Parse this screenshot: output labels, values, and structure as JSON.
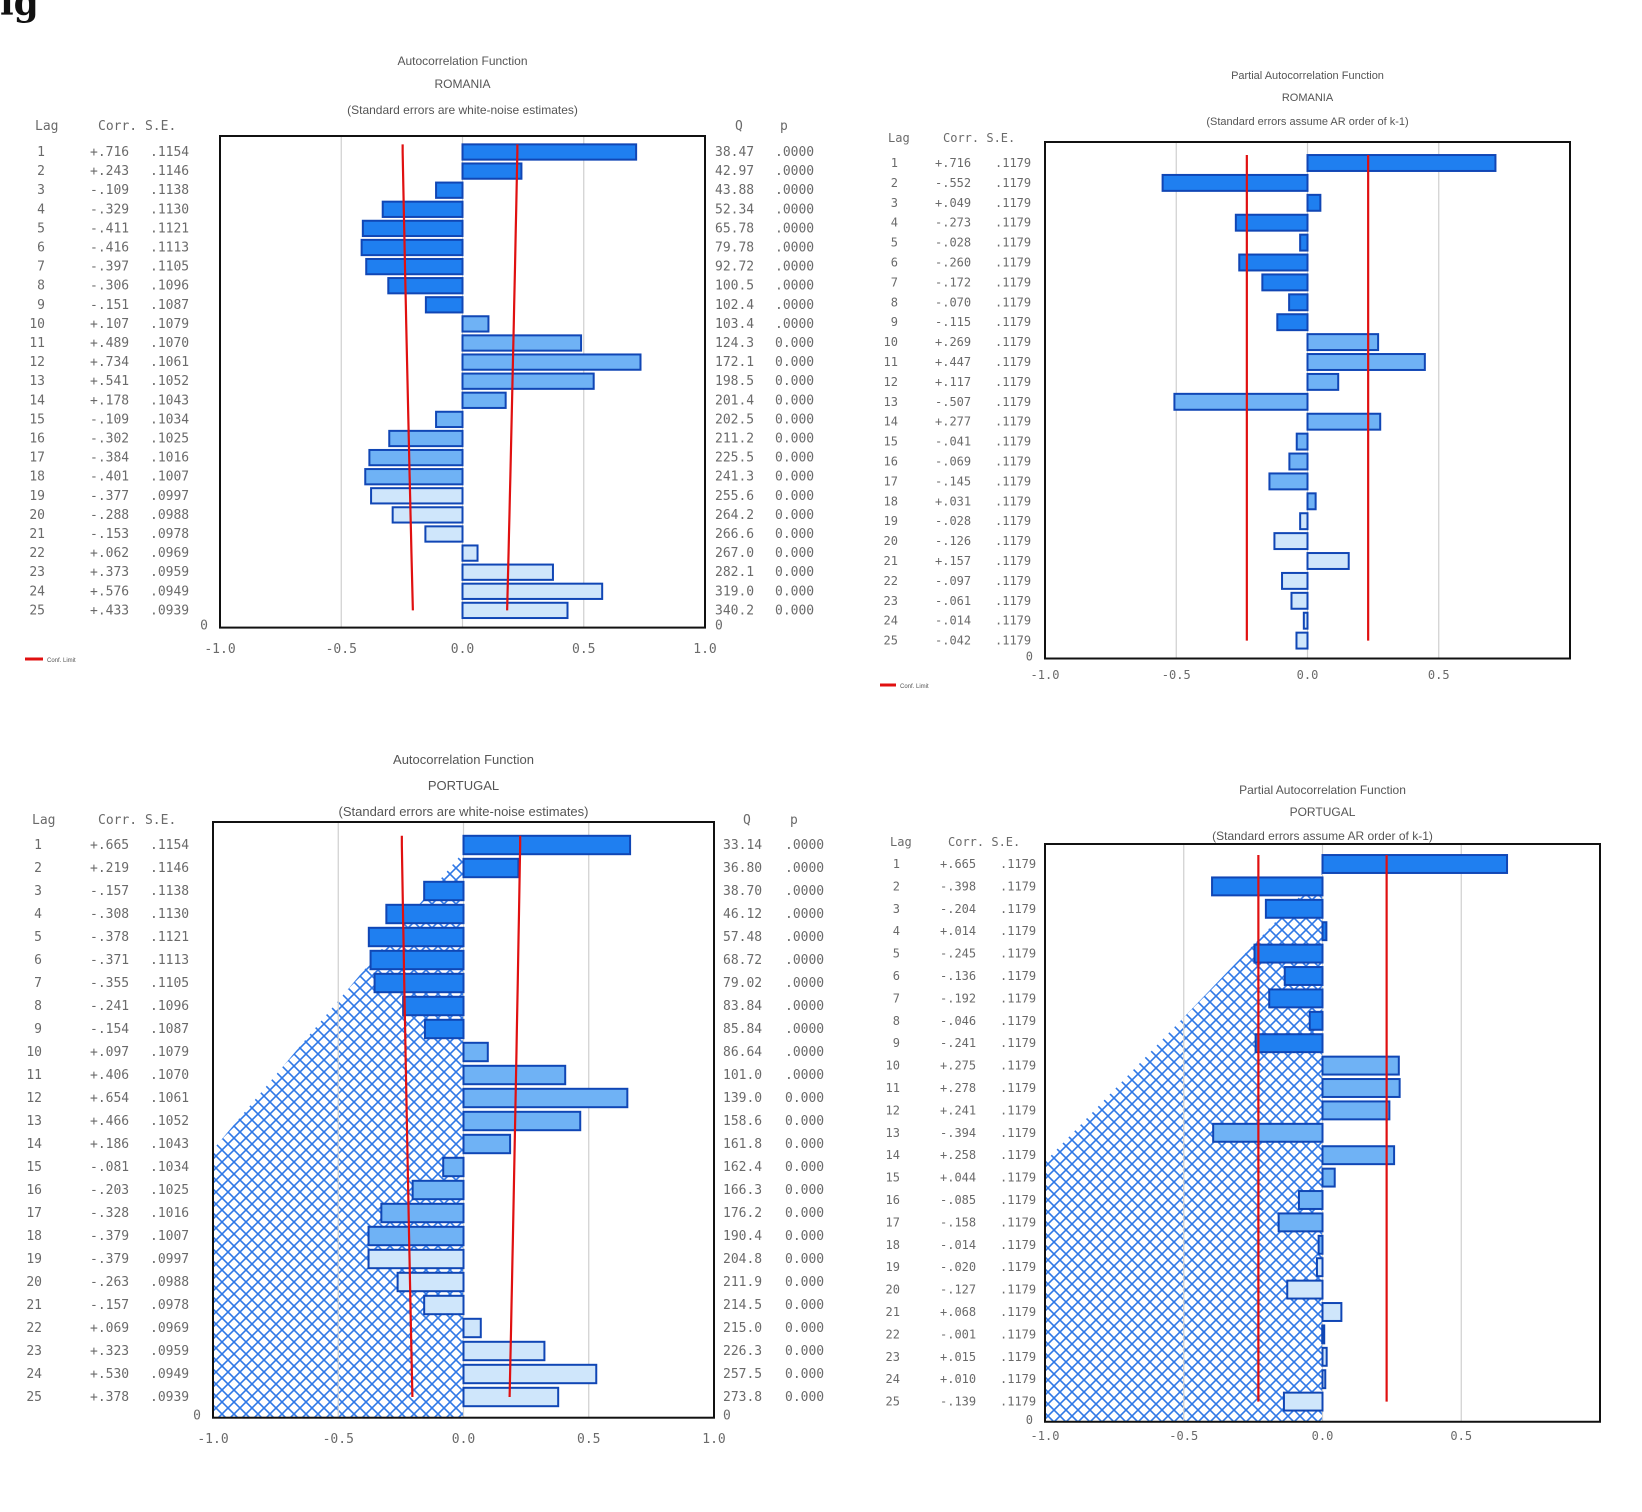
{
  "figure_label": "ig",
  "chart_data": [
    {
      "type": "bar",
      "title": "Autocorrelation Function",
      "subtitle": "ROMANIA",
      "note": "(Standard errors are white-noise estimates)",
      "column_headers": {
        "lag": "Lag",
        "corr_se": "Corr. S.E.",
        "q": "Q",
        "p": "p"
      },
      "legend": "Conf. Limit",
      "zero_row_label": "0",
      "xlim": [
        -1,
        1
      ],
      "xticks": [
        "-1.0",
        "-0.5",
        "0.0",
        "0.5",
        "1.0"
      ],
      "lag_labels": [
        "1",
        "2",
        "3",
        "4",
        "5",
        "6",
        "7",
        "8",
        "9",
        "10",
        "11",
        "12",
        "13",
        "14",
        "15",
        "16",
        "17",
        "18",
        "19",
        "20",
        "21",
        "22",
        "23",
        "24",
        "25"
      ],
      "corr_labels": [
        "+.716",
        "+.243",
        "-.109",
        "-.329",
        "-.411",
        "-.416",
        "-.397",
        "-.306",
        "-.151",
        "+.107",
        "+.489",
        "+.734",
        "+.541",
        "+.178",
        "-.109",
        "-.302",
        "-.384",
        "-.401",
        "-.377",
        "-.288",
        "-.153",
        "+.062",
        "+.373",
        "+.576",
        "+.433"
      ],
      "values": [
        0.716,
        0.243,
        -0.109,
        -0.329,
        -0.411,
        -0.416,
        -0.397,
        -0.306,
        -0.151,
        0.107,
        0.489,
        0.734,
        0.541,
        0.178,
        -0.109,
        -0.302,
        -0.384,
        -0.401,
        -0.377,
        -0.288,
        -0.153,
        0.062,
        0.373,
        0.576,
        0.433
      ],
      "se_labels": [
        ".1154",
        ".1146",
        ".1138",
        ".1130",
        ".1121",
        ".1113",
        ".1105",
        ".1096",
        ".1087",
        ".1079",
        ".1070",
        ".1061",
        ".1052",
        ".1043",
        ".1034",
        ".1025",
        ".1016",
        ".1007",
        ".0997",
        ".0988",
        ".0978",
        ".0969",
        ".0959",
        ".0949",
        ".0939"
      ],
      "se": [
        0.1154,
        0.1146,
        0.1138,
        0.113,
        0.1121,
        0.1113,
        0.1105,
        0.1096,
        0.1087,
        0.1079,
        0.107,
        0.1061,
        0.1052,
        0.1043,
        0.1034,
        0.1025,
        0.1016,
        0.1007,
        0.0997,
        0.0988,
        0.0978,
        0.0969,
        0.0959,
        0.0949,
        0.0939
      ],
      "q_labels": [
        "38.47",
        "42.97",
        "43.88",
        "52.34",
        "65.78",
        "79.78",
        "92.72",
        "100.5",
        "102.4",
        "103.4",
        "124.3",
        "172.1",
        "198.5",
        "201.4",
        "202.5",
        "211.2",
        "225.5",
        "241.3",
        "255.6",
        "264.2",
        "266.6",
        "267.0",
        "282.1",
        "319.0",
        "340.2"
      ],
      "p_labels": [
        ".0000",
        ".0000",
        ".0000",
        ".0000",
        ".0000",
        ".0000",
        ".0000",
        ".0000",
        ".0000",
        ".0000",
        "0.000",
        "0.000",
        "0.000",
        "0.000",
        "0.000",
        "0.000",
        "0.000",
        "0.000",
        "0.000",
        "0.000",
        "0.000",
        "0.000",
        "0.000",
        "0.000",
        "0.000"
      ],
      "conf_limit_multiplier": 1.96,
      "grid": true,
      "hatched": false
    },
    {
      "type": "bar",
      "title": "Partial Autocorrelation Function",
      "subtitle": "ROMANIA",
      "note": "(Standard errors assume AR order of k-1)",
      "column_headers": {
        "lag": "Lag",
        "corr_se": "Corr. S.E."
      },
      "legend": "Conf. Limit",
      "zero_row_label": "0",
      "xlim": [
        -1,
        1
      ],
      "xticks": [
        "-1.0",
        "-0.5",
        "0.0",
        "0.5"
      ],
      "lag_labels": [
        "1",
        "2",
        "3",
        "4",
        "5",
        "6",
        "7",
        "8",
        "9",
        "10",
        "11",
        "12",
        "13",
        "14",
        "15",
        "16",
        "17",
        "18",
        "19",
        "20",
        "21",
        "22",
        "23",
        "24",
        "25"
      ],
      "corr_labels": [
        "+.716",
        "-.552",
        "+.049",
        "-.273",
        "-.028",
        "-.260",
        "-.172",
        "-.070",
        "-.115",
        "+.269",
        "+.447",
        "+.117",
        "-.507",
        "+.277",
        "-.041",
        "-.069",
        "-.145",
        "+.031",
        "-.028",
        "-.126",
        "+.157",
        "-.097",
        "-.061",
        "-.014",
        "-.042"
      ],
      "values": [
        0.716,
        -0.552,
        0.049,
        -0.273,
        -0.028,
        -0.26,
        -0.172,
        -0.07,
        -0.115,
        0.269,
        0.447,
        0.117,
        -0.507,
        0.277,
        -0.041,
        -0.069,
        -0.145,
        0.031,
        -0.028,
        -0.126,
        0.157,
        -0.097,
        -0.061,
        -0.014,
        -0.042
      ],
      "se_labels": [
        ".1179",
        ".1179",
        ".1179",
        ".1179",
        ".1179",
        ".1179",
        ".1179",
        ".1179",
        ".1179",
        ".1179",
        ".1179",
        ".1179",
        ".1179",
        ".1179",
        ".1179",
        ".1179",
        ".1179",
        ".1179",
        ".1179",
        ".1179",
        ".1179",
        ".1179",
        ".1179",
        ".1179",
        ".1179"
      ],
      "se": [
        0.1179,
        0.1179,
        0.1179,
        0.1179,
        0.1179,
        0.1179,
        0.1179,
        0.1179,
        0.1179,
        0.1179,
        0.1179,
        0.1179,
        0.1179,
        0.1179,
        0.1179,
        0.1179,
        0.1179,
        0.1179,
        0.1179,
        0.1179,
        0.1179,
        0.1179,
        0.1179,
        0.1179,
        0.1179
      ],
      "conf_limit_multiplier": 1.96,
      "grid": true,
      "hatched": false
    },
    {
      "type": "bar",
      "title": "Autocorrelation Function",
      "subtitle": "PORTUGAL",
      "note": "(Standard errors are white-noise estimates)",
      "column_headers": {
        "lag": "Lag",
        "corr_se": "Corr. S.E.",
        "q": "Q",
        "p": "p"
      },
      "zero_row_label": "0",
      "xlim": [
        -1,
        1
      ],
      "xticks": [
        "-1.0",
        "-0.5",
        "0.0",
        "0.5",
        "1.0"
      ],
      "lag_labels": [
        "1",
        "2",
        "3",
        "4",
        "5",
        "6",
        "7",
        "8",
        "9",
        "10",
        "11",
        "12",
        "13",
        "14",
        "15",
        "16",
        "17",
        "18",
        "19",
        "20",
        "21",
        "22",
        "23",
        "24",
        "25"
      ],
      "corr_labels": [
        "+.665",
        "+.219",
        "-.157",
        "-.308",
        "-.378",
        "-.371",
        "-.355",
        "-.241",
        "-.154",
        "+.097",
        "+.406",
        "+.654",
        "+.466",
        "+.186",
        "-.081",
        "-.203",
        "-.328",
        "-.379",
        "-.379",
        "-.263",
        "-.157",
        "+.069",
        "+.323",
        "+.530",
        "+.378"
      ],
      "values": [
        0.665,
        0.219,
        -0.157,
        -0.308,
        -0.378,
        -0.371,
        -0.355,
        -0.241,
        -0.154,
        0.097,
        0.406,
        0.654,
        0.466,
        0.186,
        -0.081,
        -0.203,
        -0.328,
        -0.379,
        -0.379,
        -0.263,
        -0.157,
        0.069,
        0.323,
        0.53,
        0.378
      ],
      "se_labels": [
        ".1154",
        ".1146",
        ".1138",
        ".1130",
        ".1121",
        ".1113",
        ".1105",
        ".1096",
        ".1087",
        ".1079",
        ".1070",
        ".1061",
        ".1052",
        ".1043",
        ".1034",
        ".1025",
        ".1016",
        ".1007",
        ".0997",
        ".0988",
        ".0978",
        ".0969",
        ".0959",
        ".0949",
        ".0939"
      ],
      "se": [
        0.1154,
        0.1146,
        0.1138,
        0.113,
        0.1121,
        0.1113,
        0.1105,
        0.1096,
        0.1087,
        0.1079,
        0.107,
        0.1061,
        0.1052,
        0.1043,
        0.1034,
        0.1025,
        0.1016,
        0.1007,
        0.0997,
        0.0988,
        0.0978,
        0.0969,
        0.0959,
        0.0949,
        0.0939
      ],
      "q_labels": [
        "33.14",
        "36.80",
        "38.70",
        "46.12",
        "57.48",
        "68.72",
        "79.02",
        "83.84",
        "85.84",
        "86.64",
        "101.0",
        "139.0",
        "158.6",
        "161.8",
        "162.4",
        "166.3",
        "176.2",
        "190.4",
        "204.8",
        "211.9",
        "214.5",
        "215.0",
        "226.3",
        "257.5",
        "273.8"
      ],
      "p_labels": [
        ".0000",
        ".0000",
        ".0000",
        ".0000",
        ".0000",
        ".0000",
        ".0000",
        ".0000",
        ".0000",
        ".0000",
        ".0000",
        "0.000",
        "0.000",
        "0.000",
        "0.000",
        "0.000",
        "0.000",
        "0.000",
        "0.000",
        "0.000",
        "0.000",
        "0.000",
        "0.000",
        "0.000",
        "0.000"
      ],
      "conf_limit_multiplier": 1.96,
      "grid": true,
      "hatched": true
    },
    {
      "type": "bar",
      "title": "Partial Autocorrelation Function",
      "subtitle": "PORTUGAL",
      "note": "(Standard errors assume AR order of k-1)",
      "column_headers": {
        "lag": "Lag",
        "corr_se": "Corr. S.E."
      },
      "zero_row_label": "0",
      "xlim": [
        -1,
        1
      ],
      "xticks": [
        "-1.0",
        "-0.5",
        "0.0",
        "0.5"
      ],
      "lag_labels": [
        "1",
        "2",
        "3",
        "4",
        "5",
        "6",
        "7",
        "8",
        "9",
        "10",
        "11",
        "12",
        "13",
        "14",
        "15",
        "16",
        "17",
        "18",
        "19",
        "20",
        "21",
        "22",
        "23",
        "24",
        "25"
      ],
      "corr_labels": [
        "+.665",
        "-.398",
        "-.204",
        "+.014",
        "-.245",
        "-.136",
        "-.192",
        "-.046",
        "-.241",
        "+.275",
        "+.278",
        "+.241",
        "-.394",
        "+.258",
        "+.044",
        "-.085",
        "-.158",
        "-.014",
        "-.020",
        "-.127",
        "+.068",
        "-.001",
        "+.015",
        "+.010",
        "-.139"
      ],
      "values": [
        0.665,
        -0.398,
        -0.204,
        0.014,
        -0.245,
        -0.136,
        -0.192,
        -0.046,
        -0.241,
        0.275,
        0.278,
        0.241,
        -0.394,
        0.258,
        0.044,
        -0.085,
        -0.158,
        -0.014,
        -0.02,
        -0.127,
        0.068,
        -0.001,
        0.015,
        0.01,
        -0.139
      ],
      "se_labels": [
        ".1179",
        ".1179",
        ".1179",
        ".1179",
        ".1179",
        ".1179",
        ".1179",
        ".1179",
        ".1179",
        ".1179",
        ".1179",
        ".1179",
        ".1179",
        ".1179",
        ".1179",
        ".1179",
        ".1179",
        ".1179",
        ".1179",
        ".1179",
        ".1179",
        ".1179",
        ".1179",
        ".1179",
        ".1179"
      ],
      "se": [
        0.1179,
        0.1179,
        0.1179,
        0.1179,
        0.1179,
        0.1179,
        0.1179,
        0.1179,
        0.1179,
        0.1179,
        0.1179,
        0.1179,
        0.1179,
        0.1179,
        0.1179,
        0.1179,
        0.1179,
        0.1179,
        0.1179,
        0.1179,
        0.1179,
        0.1179,
        0.1179,
        0.1179,
        0.1179
      ],
      "conf_limit_multiplier": 1.96,
      "grid": true,
      "hatched": true
    }
  ]
}
